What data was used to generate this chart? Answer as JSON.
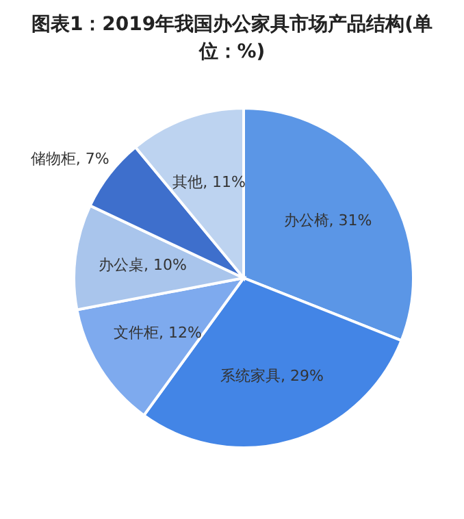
{
  "chart_data": {
    "type": "pie",
    "title": "图表1：2019年我国办公家具市场产品结构(单位：%)",
    "categories": [
      "办公椅",
      "系统家具",
      "文件柜",
      "办公桌",
      "储物柜",
      "其他"
    ],
    "values": [
      31,
      29,
      12,
      10,
      7,
      11
    ],
    "value_labels": [
      "31%",
      "29%",
      "12%",
      "10%",
      "7%",
      "11%"
    ],
    "colors": [
      "#5b96e6",
      "#4385e6",
      "#7eaaee",
      "#a9c5ec",
      "#3e6fcc",
      "#bdd3f0"
    ],
    "legend": false
  }
}
